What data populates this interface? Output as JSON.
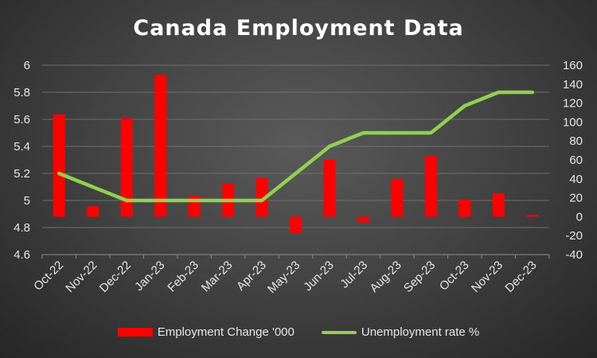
{
  "chart_data": {
    "type": "bar",
    "title": "Canada Employment Data",
    "categories": [
      "Oct-22",
      "Nov-22",
      "Dec-22",
      "Jan-23",
      "Feb-23",
      "Mar-23",
      "Apr-23",
      "May-23",
      "Jun-23",
      "Jul-23",
      "Aug-23",
      "Sep-23",
      "Oct-23",
      "Nov-23",
      "Dec-23"
    ],
    "series": [
      {
        "name": "Employment Change '000",
        "type": "bar",
        "axis": "right",
        "color": "#ff0000",
        "values": [
          108,
          11,
          104,
          150,
          22,
          35,
          41,
          -17,
          60,
          -6,
          40,
          64,
          18,
          25,
          2
        ]
      },
      {
        "name": "Unemployment rate %",
        "type": "line",
        "axis": "left",
        "color": "#92d050",
        "values": [
          5.2,
          5.1,
          5.0,
          5.0,
          5.0,
          5.0,
          5.0,
          5.2,
          5.4,
          5.5,
          5.5,
          5.5,
          5.7,
          5.8,
          5.8
        ]
      }
    ],
    "y_left": {
      "min": 4.6,
      "max": 6,
      "step": 0.2,
      "ticks": [
        "4.6",
        "4.8",
        "5",
        "5.2",
        "5.4",
        "5.6",
        "5.8",
        "6"
      ]
    },
    "y_right": {
      "min": -40,
      "max": 160,
      "step": 20,
      "ticks": [
        "-40",
        "-20",
        "0",
        "20",
        "40",
        "60",
        "80",
        "100",
        "120",
        "140",
        "160"
      ]
    },
    "grid": true,
    "legend_position": "bottom",
    "background": "#404040"
  }
}
